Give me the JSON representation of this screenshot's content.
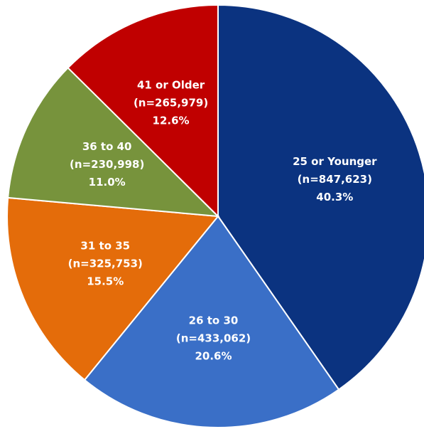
{
  "chart_data": {
    "type": "pie",
    "categories": [
      "25 or Younger",
      "26 to 30",
      "31 to 35",
      "36 to 40",
      "41 or Older"
    ],
    "values": [
      40.3,
      20.6,
      15.5,
      11.0,
      12.6
    ],
    "value_labels": [
      "40.3%",
      "20.6%",
      "15.5%",
      "11.0%",
      "12.6%"
    ],
    "count_labels": [
      "(n=847,623)",
      "(n=433,062)",
      "(n=325,753)",
      "(n=230,998)",
      "(n=265,979)"
    ],
    "colors": [
      "#0b3380",
      "#3a6fc7",
      "#e46c0a",
      "#77933c",
      "#c00000"
    ]
  }
}
